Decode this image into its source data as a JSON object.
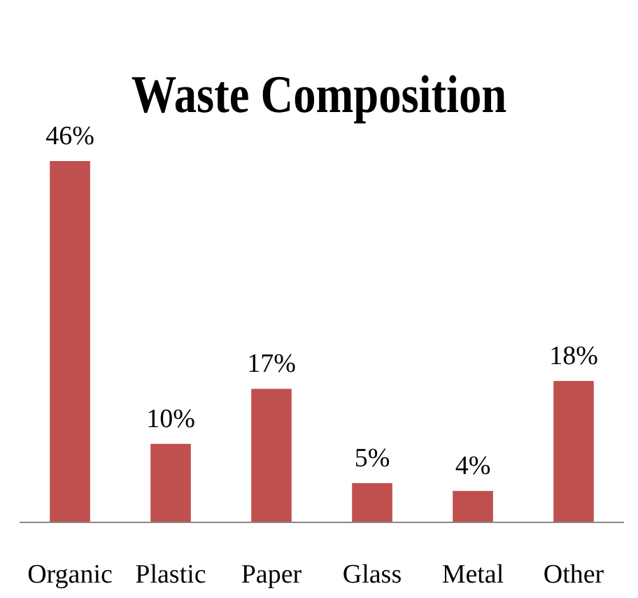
{
  "chart_data": {
    "type": "bar",
    "title": "Waste Composition",
    "categories": [
      "Organic",
      "Plastic",
      "Paper",
      "Glass",
      "Metal",
      "Other"
    ],
    "values": [
      46,
      10,
      17,
      5,
      4,
      18
    ],
    "value_labels": [
      "46%",
      "10%",
      "17%",
      "5%",
      "4%",
      "18%"
    ],
    "color": "#c0504d"
  }
}
